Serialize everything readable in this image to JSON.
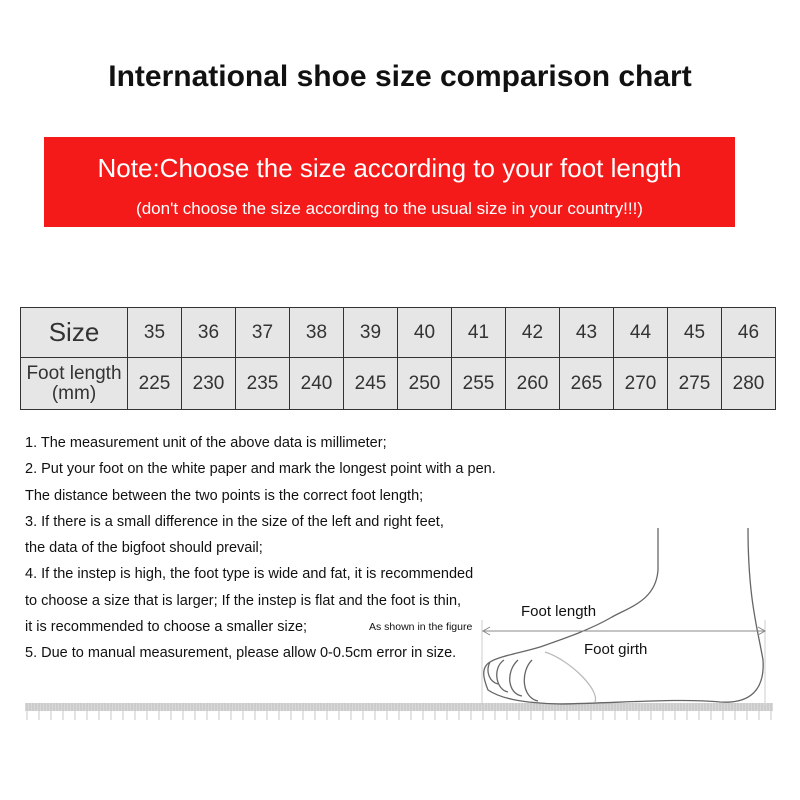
{
  "title": "International shoe size comparison chart",
  "note": {
    "line1": "Note:Choose the size according to your foot length",
    "line2": "(don't choose the size according to the usual size in your country!!!)",
    "background_color": "#f51a1a"
  },
  "size_table": {
    "row_headers": [
      "Size",
      "Foot length",
      "(mm)"
    ],
    "sizes": [
      "35",
      "36",
      "37",
      "38",
      "39",
      "40",
      "41",
      "42",
      "43",
      "44",
      "45",
      "46"
    ],
    "foot_length_mm": [
      "225",
      "230",
      "235",
      "240",
      "245",
      "250",
      "255",
      "260",
      "265",
      "270",
      "275",
      "280"
    ]
  },
  "notes": [
    "1. The measurement unit of the above data is millimeter;",
    "2. Put your foot on the white paper and mark the longest point with a pen.",
    "The distance between the two points is the correct foot length;",
    "3. If there is a small difference in the size of the left and right feet,",
    "the data of the bigfoot should prevail;",
    "4. If the instep is high, the foot type is wide and fat, it is recommended",
    "to choose a size that is larger; If the instep is flat and the foot is thin,",
    "it is recommended to choose a smaller size;",
    "5.  Due to manual measurement, please allow 0-0.5cm error in size."
  ],
  "figure": {
    "as_shown": "As shown in the figure",
    "foot_length": "Foot length",
    "foot_girth": "Foot girth"
  }
}
